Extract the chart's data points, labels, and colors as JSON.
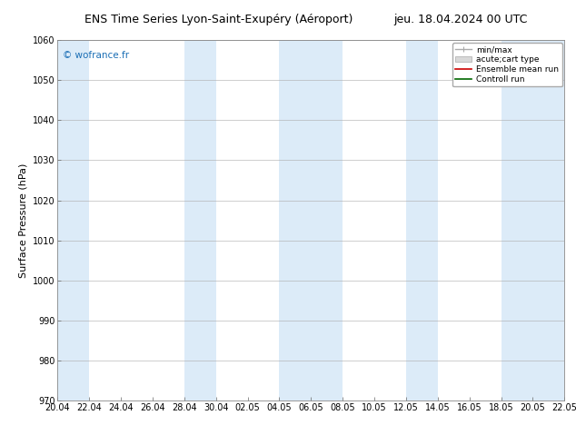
{
  "title_left": "ENS Time Series Lyon-Saint-Exupéry (Aéroport)",
  "title_right": "jeu. 18.04.2024 00 UTC",
  "ylabel": "Surface Pressure (hPa)",
  "ylim": [
    970,
    1060
  ],
  "yticks": [
    970,
    980,
    990,
    1000,
    1010,
    1020,
    1030,
    1040,
    1050,
    1060
  ],
  "xtick_labels": [
    "20.04",
    "22.04",
    "24.04",
    "26.04",
    "28.04",
    "30.04",
    "02.05",
    "04.05",
    "06.05",
    "08.05",
    "10.05",
    "12.05",
    "14.05",
    "16.05",
    "18.05",
    "20.05",
    "22.05"
  ],
  "copyright": "© wofrance.fr",
  "copyright_color": "#1a6eb5",
  "bg_color": "#ffffff",
  "plot_bg_color": "#ffffff",
  "band_color": "#d6e8f7",
  "band_alpha": 0.85,
  "legend_labels": [
    "min/max",
    "acute;cart type",
    "Ensemble mean run",
    "Controll run"
  ],
  "grid_color": "#aaaaaa",
  "tick_label_fontsize": 7,
  "axis_label_fontsize": 8,
  "title_fontsize": 9,
  "copyright_fontsize": 7.5
}
